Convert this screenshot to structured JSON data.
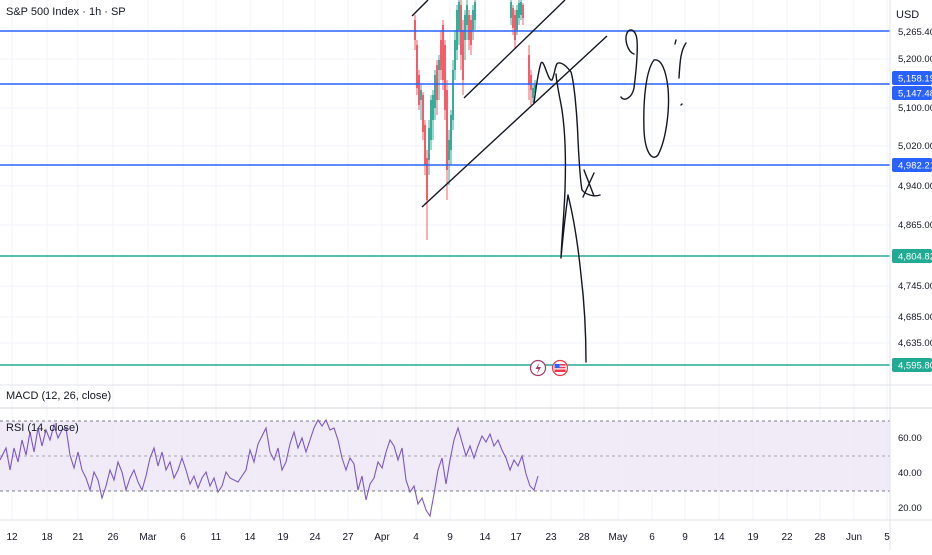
{
  "symbol": {
    "title": "S&P 500 Index · 1h · SP"
  },
  "currency": "USD",
  "indicators": {
    "macd_label": "MACD (12, 26, close)",
    "rsi_label": "RSI (14, close)"
  },
  "price_scale": {
    "ticks": [
      "5,200.00",
      "5,100.00",
      "5,020.00",
      "4,940.00",
      "4,865.00",
      "4,745.00",
      "4,685.00",
      "4,635.00"
    ],
    "partial_top": "5,265.40"
  },
  "levels": [
    {
      "label": "5,158.19",
      "color": "#2962ff",
      "kind": "annotation"
    },
    {
      "label": "5,147.48",
      "color": "#2962ff",
      "kind": "horizontal-line"
    },
    {
      "label": "4,982.21",
      "color": "#2962ff",
      "kind": "horizontal-line"
    },
    {
      "label": "4,804.82",
      "color": "#22ab94",
      "kind": "horizontal-line"
    },
    {
      "label": "4,595.80",
      "color": "#22ab94",
      "kind": "horizontal-line"
    }
  ],
  "rsi_scale": {
    "ticks": [
      "60.00",
      "40.00",
      "20.00"
    ]
  },
  "time_axis": {
    "labels": [
      "12",
      "18",
      "21",
      "26",
      "Mar",
      "6",
      "11",
      "14",
      "19",
      "24",
      "27",
      "Apr",
      "4",
      "9",
      "14",
      "17",
      "23",
      "28",
      "May",
      "6",
      "9",
      "14",
      "19",
      "22",
      "28",
      "Jun",
      "5"
    ]
  },
  "colors": {
    "up": "#089981",
    "down": "#f23645",
    "line_blue": "#2962ff",
    "line_green": "#22ab94",
    "rsi": "#7e57c2",
    "rsi_band": "#ede7f6"
  },
  "icons": [
    "lightning-icon",
    "us-flag-icon"
  ]
}
